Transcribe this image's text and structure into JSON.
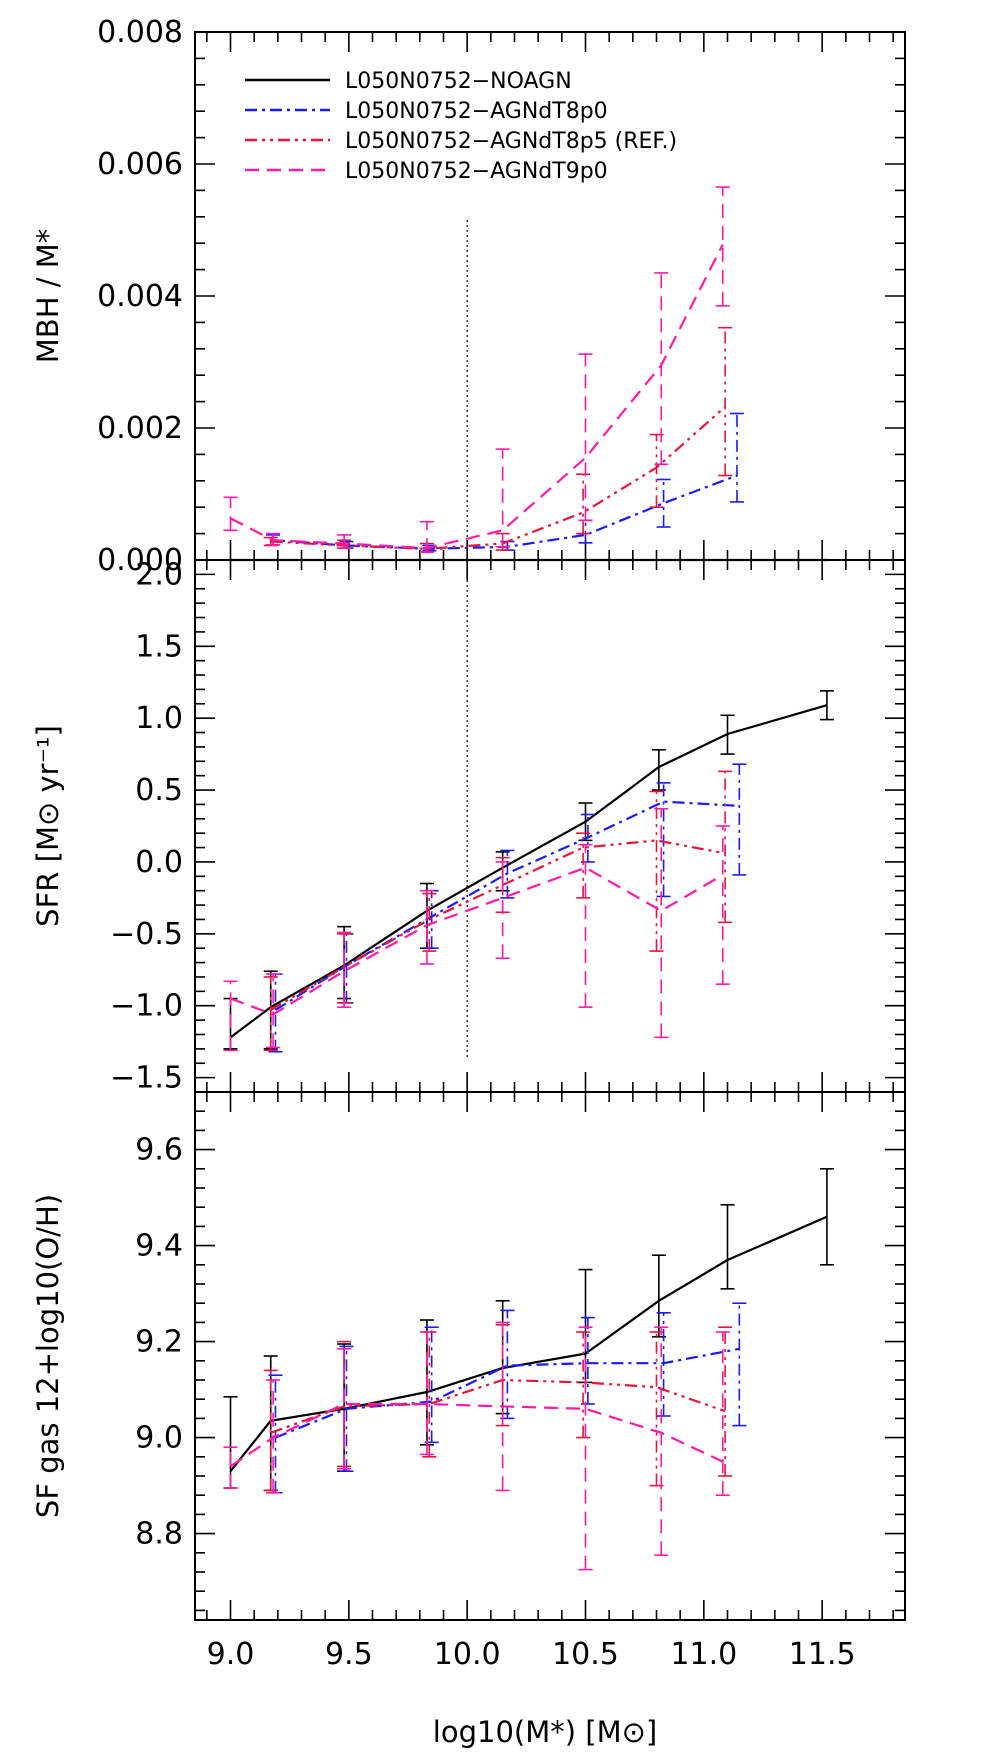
{
  "figure": {
    "xlabel": "log10(M*) [M⊙]"
  },
  "chart_data": [
    {
      "type": "line",
      "panel": "top",
      "ylabel": "MBH / M*",
      "ylim": [
        0,
        0.008
      ],
      "xlim": [
        8.85,
        11.85
      ],
      "yticks": [
        0.0,
        0.002,
        0.004,
        0.006,
        0.008
      ],
      "ytick_labels": [
        "0.000",
        "0.002",
        "0.004",
        "0.006",
        "0.008"
      ],
      "vline": 10.0,
      "legend": {
        "placement": "top-left"
      },
      "series": [
        {
          "name": "L050N0752−NOAGN",
          "color": "#000000",
          "dash": "solid",
          "x": [
            9.0,
            9.17,
            9.48,
            9.83,
            10.15,
            10.5,
            10.81,
            11.1,
            11.52
          ],
          "y": [
            0,
            0,
            0,
            0,
            0,
            0,
            0,
            0,
            0
          ],
          "err": [
            [
              0,
              0
            ],
            [
              0,
              0
            ],
            [
              0,
              0
            ],
            [
              0,
              0
            ],
            [
              0,
              0
            ],
            [
              0,
              0
            ],
            [
              0,
              0
            ],
            [
              0,
              0
            ],
            [
              0,
              0
            ]
          ]
        },
        {
          "name": "L050N0752−AGNdT8p0",
          "color": "#1a1aff",
          "dash": "dashdot",
          "x": [
            9.18,
            9.49,
            9.84,
            10.17,
            10.5,
            10.83,
            11.14
          ],
          "y": [
            0.0003,
            0.00022,
            0.00017,
            0.0002,
            0.00038,
            0.00086,
            0.00128
          ],
          "err": [
            [
              0.00023,
              0.00038
            ],
            [
              0.00018,
              0.00028
            ],
            [
              0.00014,
              0.00022
            ],
            [
              0.00015,
              0.00028
            ],
            [
              0.00026,
              0.0006
            ],
            [
              0.0005,
              0.00122
            ],
            [
              0.00088,
              0.00222
            ]
          ]
        },
        {
          "name": "L050N0752−AGNdT8p5 (REF.)",
          "color": "#e8143c",
          "dash": "dashdotdot",
          "x": [
            9.17,
            9.48,
            9.83,
            10.15,
            10.49,
            10.8,
            11.09
          ],
          "y": [
            0.00028,
            0.00022,
            0.00017,
            0.00025,
            0.00072,
            0.0014,
            0.00232
          ],
          "err": [
            [
              0.00022,
              0.00034
            ],
            [
              0.00018,
              0.0003
            ],
            [
              0.00012,
              0.00025
            ],
            [
              0.00015,
              0.0004
            ],
            [
              0.0004,
              0.0013
            ],
            [
              0.0008,
              0.0019
            ],
            [
              0.00128,
              0.00352
            ]
          ]
        },
        {
          "name": "L050N0752−AGNdT9p0",
          "color": "#ff1aaa",
          "dash": "dashed",
          "x": [
            9.0,
            9.18,
            9.48,
            9.83,
            10.15,
            10.5,
            10.82,
            11.08
          ],
          "y": [
            0.00063,
            0.0003,
            0.00025,
            0.00018,
            0.00045,
            0.00155,
            0.00295,
            0.00478
          ],
          "err": [
            [
              0.00045,
              0.00095
            ],
            [
              0.00023,
              0.0004
            ],
            [
              0.00018,
              0.00038
            ],
            [
              0.00012,
              0.00058
            ],
            [
              0.0002,
              0.00168
            ],
            [
              0.0006,
              0.00312
            ],
            [
              0.00145,
              0.00435
            ],
            [
              0.00385,
              0.00565
            ]
          ]
        }
      ]
    },
    {
      "type": "line",
      "panel": "middle",
      "ylabel": "SFR [M⊙ yr⁻¹]",
      "ylim": [
        -1.6,
        2.1
      ],
      "xlim": [
        8.85,
        11.85
      ],
      "yticks": [
        -1.5,
        -1.0,
        -0.5,
        0.0,
        0.5,
        1.0,
        1.5,
        2.0
      ],
      "ytick_labels": [
        "−1.5",
        "−1.0",
        "−0.5",
        "0.0",
        "0.5",
        "1.0",
        "1.5",
        "2.0"
      ],
      "vline": 10.0,
      "series": [
        {
          "name": "L050N0752−NOAGN",
          "color": "#000000",
          "dash": "solid",
          "x": [
            9.0,
            9.17,
            9.48,
            9.83,
            10.15,
            10.5,
            10.81,
            11.1,
            11.52
          ],
          "y": [
            -1.22,
            -1.01,
            -0.72,
            -0.34,
            -0.04,
            0.28,
            0.66,
            0.89,
            1.09
          ],
          "err": [
            [
              -1.3,
              -0.95
            ],
            [
              -1.3,
              -0.76
            ],
            [
              -0.95,
              -0.45
            ],
            [
              -0.6,
              -0.15
            ],
            [
              -0.2,
              0.07
            ],
            [
              0.15,
              0.41
            ],
            [
              0.5,
              0.78
            ],
            [
              0.75,
              1.02
            ],
            [
              0.99,
              1.19
            ]
          ]
        },
        {
          "name": "L050N0752−AGNdT8p0",
          "color": "#1a1aff",
          "dash": "dashdot",
          "x": [
            9.19,
            9.49,
            9.85,
            10.17,
            10.51,
            10.83,
            11.15
          ],
          "y": [
            -1.03,
            -0.72,
            -0.38,
            -0.08,
            0.17,
            0.42,
            0.39
          ],
          "err": [
            [
              -1.32,
              -0.78
            ],
            [
              -0.98,
              -0.5
            ],
            [
              -0.6,
              -0.2
            ],
            [
              -0.25,
              0.08
            ],
            [
              0.0,
              0.33
            ],
            [
              -0.24,
              0.55
            ],
            [
              -0.09,
              0.68
            ]
          ]
        },
        {
          "name": "L050N0752−AGNdT8p5 (REF.)",
          "color": "#e8143c",
          "dash": "dashdotdot",
          "x": [
            9.17,
            9.48,
            9.84,
            10.15,
            10.49,
            10.8,
            11.09
          ],
          "y": [
            -1.03,
            -0.73,
            -0.4,
            -0.16,
            0.1,
            0.15,
            0.06
          ],
          "err": [
            [
              -1.31,
              -0.8
            ],
            [
              -0.98,
              -0.5
            ],
            [
              -0.62,
              -0.22
            ],
            [
              -0.35,
              0.03
            ],
            [
              -0.25,
              0.2
            ],
            [
              -0.62,
              0.49
            ],
            [
              -0.42,
              0.63
            ]
          ]
        },
        {
          "name": "L050N0752−AGNdT9p0",
          "color": "#ff1aaa",
          "dash": "dashed",
          "x": [
            9.0,
            9.18,
            9.48,
            9.83,
            10.15,
            10.5,
            10.82,
            11.08
          ],
          "y": [
            -0.95,
            -1.06,
            -0.76,
            -0.44,
            -0.25,
            -0.04,
            -0.34,
            -0.09
          ],
          "err": [
            [
              -1.31,
              -0.83
            ],
            [
              -1.29,
              -0.78
            ],
            [
              -1.01,
              -0.49
            ],
            [
              -0.71,
              -0.2
            ],
            [
              -0.67,
              0.0
            ],
            [
              -1.01,
              0.12
            ],
            [
              -1.22,
              0.37
            ],
            [
              -0.85,
              0.25
            ]
          ]
        }
      ]
    },
    {
      "type": "line",
      "panel": "bottom",
      "ylabel": "SF gas 12+log10(O/H)",
      "ylim": [
        8.62,
        9.72
      ],
      "xlim": [
        8.85,
        11.85
      ],
      "yticks": [
        8.8,
        9.0,
        9.2,
        9.4,
        9.6
      ],
      "ytick_labels": [
        "8.8",
        "9.0",
        "9.2",
        "9.4",
        "9.6"
      ],
      "series": [
        {
          "name": "L050N0752−NOAGN",
          "color": "#000000",
          "dash": "solid",
          "x": [
            9.0,
            9.17,
            9.48,
            9.83,
            10.15,
            10.5,
            10.81,
            11.1,
            11.52
          ],
          "y": [
            8.93,
            9.035,
            9.06,
            9.095,
            9.145,
            9.175,
            9.285,
            9.37,
            9.46
          ],
          "err": [
            [
              8.895,
              9.085
            ],
            [
              8.89,
              9.17
            ],
            [
              8.93,
              9.195
            ],
            [
              8.985,
              9.245
            ],
            [
              9.05,
              9.285
            ],
            [
              9.115,
              9.35
            ],
            [
              9.21,
              9.38
            ],
            [
              9.31,
              9.485
            ],
            [
              9.36,
              9.56
            ]
          ]
        },
        {
          "name": "L050N0752−AGNdT8p0",
          "color": "#1a1aff",
          "dash": "dashdot",
          "x": [
            9.19,
            9.49,
            9.85,
            10.17,
            10.51,
            10.83,
            11.15
          ],
          "y": [
            9.0,
            9.06,
            9.075,
            9.15,
            9.155,
            9.155,
            9.185
          ],
          "err": [
            [
              8.885,
              9.13
            ],
            [
              8.93,
              9.19
            ],
            [
              8.99,
              9.23
            ],
            [
              9.04,
              9.265
            ],
            [
              9.07,
              9.25
            ],
            [
              9.045,
              9.26
            ],
            [
              9.025,
              9.28
            ]
          ]
        },
        {
          "name": "L050N0752−AGNdT8p5 (REF.)",
          "color": "#e8143c",
          "dash": "dashdotdot",
          "x": [
            9.17,
            9.48,
            9.84,
            10.15,
            10.49,
            10.8,
            11.09
          ],
          "y": [
            9.01,
            9.065,
            9.07,
            9.12,
            9.115,
            9.105,
            9.055
          ],
          "err": [
            [
              8.89,
              9.14
            ],
            [
              8.94,
              9.2
            ],
            [
              8.96,
              9.22
            ],
            [
              9.025,
              9.235
            ],
            [
              9.0,
              9.22
            ],
            [
              8.9,
              9.22
            ],
            [
              8.92,
              9.23
            ]
          ]
        },
        {
          "name": "L050N0752−AGNdT9p0",
          "color": "#ff1aaa",
          "dash": "dashed",
          "x": [
            9.0,
            9.18,
            9.48,
            9.83,
            10.15,
            10.5,
            10.82,
            11.08
          ],
          "y": [
            8.94,
            9.0,
            9.07,
            9.07,
            9.065,
            9.06,
            9.01,
            8.95
          ],
          "err": [
            [
              8.895,
              8.98
            ],
            [
              8.885,
              9.12
            ],
            [
              8.935,
              9.185
            ],
            [
              8.965,
              9.22
            ],
            [
              8.89,
              9.24
            ],
            [
              8.725,
              9.23
            ],
            [
              8.755,
              9.23
            ],
            [
              8.88,
              9.22
            ]
          ]
        }
      ]
    }
  ]
}
